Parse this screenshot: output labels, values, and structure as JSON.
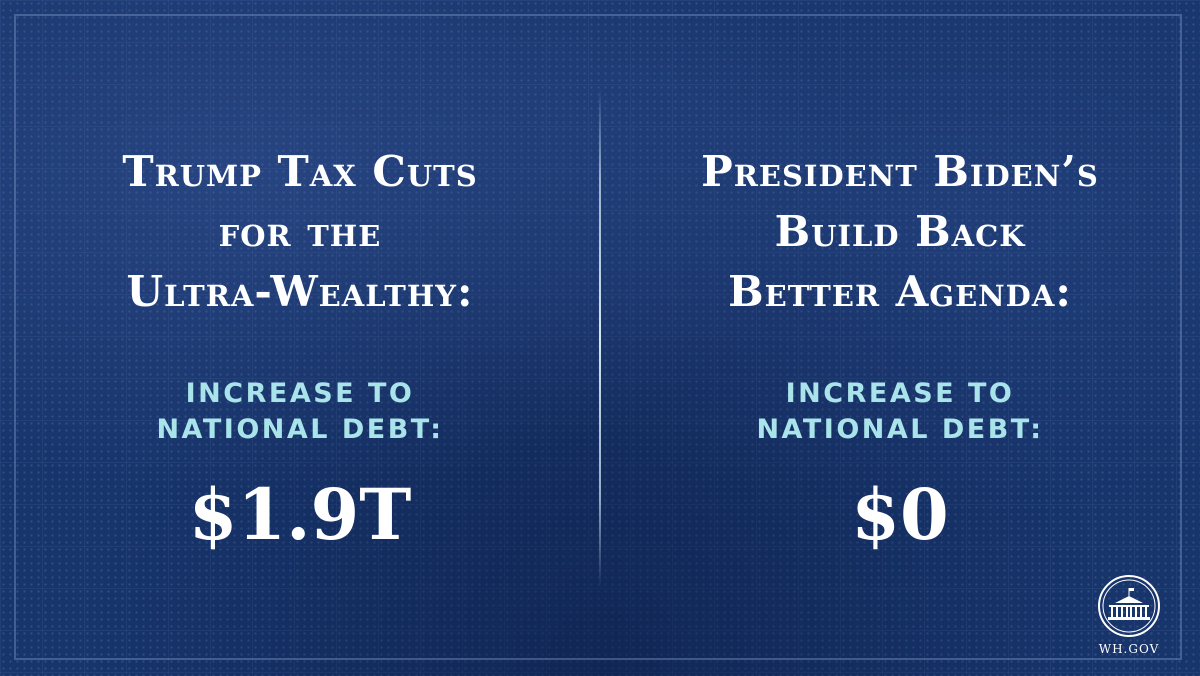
{
  "left": {
    "headline": [
      "Trump Tax Cuts",
      "for the",
      "Ultra-Wealthy:"
    ],
    "label": [
      "INCREASE TO",
      "NATIONAL DEBT:"
    ],
    "amount": "$1.9T"
  },
  "right": {
    "headline": [
      "President Biden’s",
      "Build Back",
      "Better Agenda:"
    ],
    "label": [
      "INCREASE TO",
      "NATIONAL DEBT:"
    ],
    "amount": "$0"
  },
  "logo": {
    "text": "WH.GOV",
    "icon": "white-house-icon"
  },
  "colors": {
    "background": "#17346b",
    "headline": "#ffffff",
    "label": "#a9e4ea",
    "divider": "#dceffa"
  }
}
